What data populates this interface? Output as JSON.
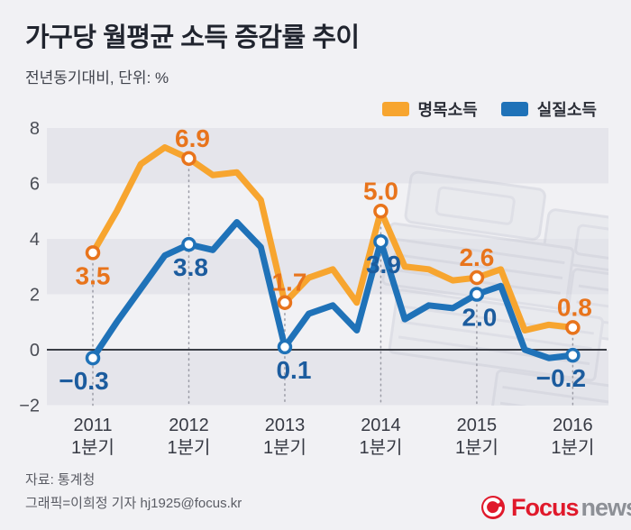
{
  "title": "가구당 월평균 소득 증감률 추이",
  "subtitle": "전년동기대비, 단위: %",
  "footer": {
    "source": "자료: 통계청",
    "credit": "그래픽=이희정 기자 hj1925@focus.kr"
  },
  "logo": {
    "focus": "Focus",
    "news": "news"
  },
  "colors": {
    "background": "#f1f1f4",
    "band": "#e5e5eb",
    "zero_line": "#3a3d45",
    "guide_line": "#9b9ca6",
    "axis_text": "#4a4d55",
    "x_text": "#363943",
    "nominal": "#F7A52F",
    "nominal_accent": "#E8741C",
    "real": "#1F72B8",
    "real_accent": "#1C5C9E",
    "logo_red": "#E0192B",
    "logo_gray": "#8D9096"
  },
  "chart_data": {
    "type": "line",
    "title": "가구당 월평균 소득 증감률 추이",
    "x_unit": "quarterly, 2011 Q1 - 2016 Q1",
    "ylim": [
      -2,
      8
    ],
    "grid_bands": [
      [
        6,
        8
      ],
      [
        2,
        4
      ],
      [
        -2,
        0
      ]
    ],
    "legend_position": "top-right",
    "y_ticks": [
      {
        "label": "8",
        "value": 8
      },
      {
        "label": "6",
        "value": 6
      },
      {
        "label": "4",
        "value": 4
      },
      {
        "label": "2",
        "value": 2
      },
      {
        "label": "0",
        "value": 0
      },
      {
        "label": "−2",
        "value": -2
      }
    ],
    "x_axis_ticks": [
      {
        "index": 0,
        "year": "2011",
        "quarter": "1분기"
      },
      {
        "index": 4,
        "year": "2012",
        "quarter": "1분기"
      },
      {
        "index": 8,
        "year": "2013",
        "quarter": "1분기"
      },
      {
        "index": 12,
        "year": "2014",
        "quarter": "1분기"
      },
      {
        "index": 16,
        "year": "2015",
        "quarter": "1분기"
      },
      {
        "index": 20,
        "year": "2016",
        "quarter": "1분기"
      }
    ],
    "series": [
      {
        "name": "명목소득",
        "color": "#F7A52F",
        "marker_color": "#E8741C",
        "label_color": "#E8741C",
        "values": [
          3.5,
          5.0,
          6.7,
          7.3,
          6.9,
          6.3,
          6.4,
          5.4,
          1.7,
          2.6,
          2.9,
          1.7,
          5.0,
          3.0,
          2.9,
          2.5,
          2.6,
          2.9,
          0.7,
          0.9,
          0.8
        ],
        "point_labels": [
          {
            "i": 0,
            "text": "3.5",
            "pos": "below",
            "dx": 0
          },
          {
            "i": 4,
            "text": "6.9",
            "pos": "above",
            "dx": 4
          },
          {
            "i": 8,
            "text": "1.7",
            "pos": "above",
            "dx": 5
          },
          {
            "i": 12,
            "text": "5.0",
            "pos": "above",
            "dx": 0
          },
          {
            "i": 16,
            "text": "2.6",
            "pos": "above",
            "dx": 0
          },
          {
            "i": 20,
            "text": "0.8",
            "pos": "above",
            "dx": 2
          }
        ]
      },
      {
        "name": "실질소득",
        "color": "#1F72B8",
        "marker_color": "#1F72B8",
        "label_color": "#1C5C9E",
        "values": [
          -0.3,
          1.0,
          2.2,
          3.4,
          3.8,
          3.6,
          4.6,
          3.7,
          0.1,
          1.3,
          1.6,
          0.7,
          3.9,
          1.1,
          1.6,
          1.5,
          2.0,
          2.3,
          0.0,
          -0.3,
          -0.2
        ],
        "point_labels": [
          {
            "i": 0,
            "text": "−0.3",
            "pos": "below",
            "dx": -10
          },
          {
            "i": 4,
            "text": "3.8",
            "pos": "below",
            "dx": 2
          },
          {
            "i": 8,
            "text": "0.1",
            "pos": "below",
            "dx": 10
          },
          {
            "i": 12,
            "text": "3.9",
            "pos": "below",
            "dx": 3
          },
          {
            "i": 16,
            "text": "2.0",
            "pos": "below",
            "dx": 3
          },
          {
            "i": 20,
            "text": "−0.2",
            "pos": "below",
            "dx": -13
          }
        ]
      }
    ]
  }
}
